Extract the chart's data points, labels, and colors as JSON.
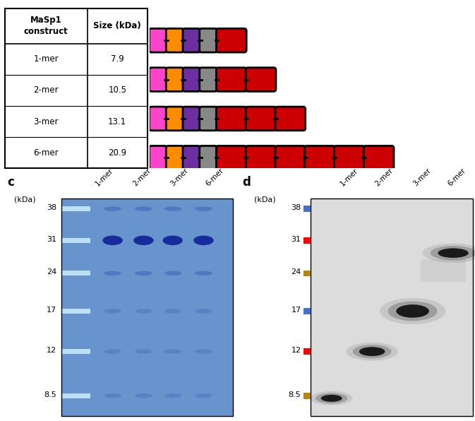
{
  "table_rows": [
    {
      "construct": "1-mer",
      "size": "7.9",
      "n_red": 1
    },
    {
      "construct": "2-mer",
      "size": "10.5",
      "n_red": 2
    },
    {
      "construct": "3-mer",
      "size": "13.1",
      "n_red": 3
    },
    {
      "construct": "6-mer",
      "size": "20.9",
      "n_red": 6
    }
  ],
  "block_colors": {
    "magenta": "#FF44CC",
    "orange": "#FF8C00",
    "purple": "#6B2FA0",
    "gray": "#888888",
    "red": "#CC0000"
  },
  "lanes": [
    "1-mer",
    "2-mer",
    "3-mer",
    "6-mer"
  ],
  "kda_yfracs": {
    "38": 0.82,
    "31": 0.695,
    "24": 0.565,
    "17": 0.415,
    "12": 0.255,
    "8.5": 0.08
  },
  "ladder_colors_d": {
    "38": "#4472C4",
    "31": "#FF0000",
    "24": "#B8860B",
    "17": "#4472C4",
    "12": "#FF0000",
    "8.5": "#B8860B"
  }
}
